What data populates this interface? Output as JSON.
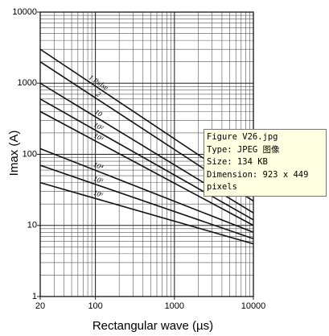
{
  "chart_data": {
    "type": "line",
    "x_label": "Rectangular wave (µs)",
    "y_label": "Imax (A)",
    "x": [
      20,
      10000
    ],
    "series": [
      {
        "name": "1 Pulse",
        "color": "#111111",
        "values": [
          3000,
          30
        ]
      },
      {
        "name": "2",
        "color": "#111111",
        "values": [
          2000,
          22
        ]
      },
      {
        "name": "10",
        "color": "#111111",
        "values": [
          1000,
          15
        ]
      },
      {
        "name": "10²",
        "color": "#111111",
        "values": [
          600,
          12
        ]
      },
      {
        "name": "10³",
        "color": "#111111",
        "values": [
          400,
          10
        ]
      },
      {
        "name": "10⁴",
        "color": "#111111",
        "values": [
          120,
          8
        ]
      },
      {
        "name": "10⁵",
        "color": "#111111",
        "values": [
          70,
          6.5
        ]
      },
      {
        "name": "10⁶",
        "color": "#111111",
        "values": [
          40,
          5.5
        ]
      }
    ],
    "xlim": [
      20,
      10000
    ],
    "ylim": [
      1,
      10000
    ],
    "xticks": [
      20,
      100,
      1000,
      10000
    ],
    "yticks": [
      1,
      10,
      100,
      1000,
      10000
    ],
    "log_x": true,
    "log_y": true,
    "grid": true,
    "minor_grid": true
  },
  "tooltip": {
    "lines": [
      "Figure V26.jpg",
      "Type: JPEG 图像",
      "Size: 134 KB",
      "Dimension: 923 x 449",
      "pixels"
    ]
  }
}
